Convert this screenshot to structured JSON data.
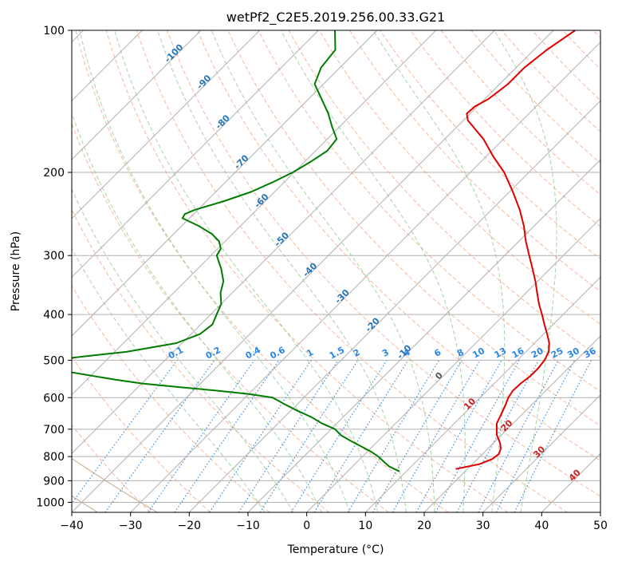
{
  "chart_data": {
    "type": "line",
    "title": "wetPf2_C2E5.2019.256.00.33.G21",
    "xlabel": "Temperature (°C)",
    "ylabel": "Pressure (hPa)",
    "xlim": [
      -40,
      50
    ],
    "ylim": [
      1050,
      100
    ],
    "yscale": "log",
    "skew": 35,
    "grid": true,
    "x_ticks": [
      -40,
      -30,
      -20,
      -10,
      0,
      10,
      20,
      30,
      40,
      50
    ],
    "y_ticks": [
      100,
      200,
      300,
      400,
      500,
      600,
      700,
      800,
      900,
      1000
    ],
    "series": [
      {
        "color": "#e00000",
        "p": [
          850,
          830,
          810,
          790,
          770,
          750,
          720,
          700,
          680,
          650,
          620,
          600,
          580,
          560,
          540,
          520,
          500,
          480,
          460,
          440,
          420,
          400,
          380,
          360,
          340,
          320,
          300,
          280,
          260,
          240,
          220,
          200,
          185,
          170,
          162,
          155,
          150,
          145,
          140,
          130,
          120,
          110,
          100
        ],
        "t": [
          18,
          21.2,
          22.5,
          22.8,
          22.2,
          21.2,
          19.2,
          18.2,
          17.2,
          16.4,
          15.5,
          14.8,
          14.4,
          14.5,
          14.9,
          14.9,
          14.6,
          13.9,
          12.5,
          10.6,
          8.5,
          6.4,
          4.1,
          1.9,
          -0.4,
          -3.0,
          -5.8,
          -8.8,
          -11.7,
          -15.2,
          -19.4,
          -24.2,
          -28.8,
          -33.4,
          -36.5,
          -39.3,
          -40.6,
          -40.4,
          -39.4,
          -38.6,
          -38.6,
          -37.8,
          -36.3
        ]
      },
      {
        "color": "#007c00",
        "p": [
          860,
          840,
          820,
          800,
          780,
          760,
          740,
          720,
          700,
          680,
          660,
          640,
          620,
          600,
          590,
          580,
          570,
          560,
          550,
          540,
          530,
          520,
          510,
          505,
          500,
          490,
          480,
          460,
          440,
          420,
          400,
          380,
          360,
          340,
          320,
          300,
          290,
          280,
          270,
          260,
          250,
          245,
          240,
          230,
          220,
          210,
          200,
          190,
          180,
          170,
          160,
          150,
          140,
          130,
          120,
          110,
          100
        ],
        "t": [
          8.8,
          6.3,
          4.5,
          2.7,
          0.5,
          -2.1,
          -4.8,
          -7.4,
          -9.3,
          -12.6,
          -15.4,
          -18.8,
          -22.1,
          -25.3,
          -29.8,
          -36.0,
          -43.0,
          -50.0,
          -55.0,
          -59.5,
          -64.0,
          -67.5,
          -70.0,
          -70.5,
          -69.5,
          -64.0,
          -58.0,
          -51.0,
          -48.5,
          -48.0,
          -49.0,
          -50.0,
          -52.0,
          -53.5,
          -56.0,
          -59.0,
          -59.5,
          -61.0,
          -63.5,
          -67.0,
          -71.2,
          -71.5,
          -70.5,
          -67.0,
          -64.0,
          -62.0,
          -60.2,
          -59.0,
          -58.0,
          -58.4,
          -61.3,
          -64.2,
          -67.7,
          -71.5,
          -73.2,
          -73.8,
          -77.2
        ]
      }
    ],
    "dry_adiabats_theta_C": [
      -30,
      -20,
      -10,
      0,
      10,
      20,
      30,
      40,
      50,
      60,
      70,
      80,
      90,
      100,
      110,
      120,
      130,
      140,
      150,
      160,
      170,
      180,
      190,
      200
    ],
    "moist_adiabats_C": [
      -10,
      -5,
      0,
      5,
      10,
      15,
      20,
      25,
      30,
      35
    ],
    "mixing_ratio_lines": [
      {
        "label": "0.1",
        "w": 0.1
      },
      {
        "label": "0.2",
        "w": 0.2
      },
      {
        "label": "0.4",
        "w": 0.4
      },
      {
        "label": "0.6",
        "w": 0.6
      },
      {
        "label": "1",
        "w": 1
      },
      {
        "label": "1.5",
        "w": 1.5
      },
      {
        "label": "2",
        "w": 2
      },
      {
        "label": "3",
        "w": 3
      },
      {
        "label": "4",
        "w": 4
      },
      {
        "label": "6",
        "w": 6
      },
      {
        "label": "8",
        "w": 8
      },
      {
        "label": "10",
        "w": 10
      },
      {
        "label": "13",
        "w": 13
      },
      {
        "label": "16",
        "w": 16
      },
      {
        "label": "20",
        "w": 20
      },
      {
        "label": "25",
        "w": 25
      },
      {
        "label": "30",
        "w": 30
      },
      {
        "label": "36",
        "w": 36
      }
    ],
    "isotherm_labels_upper": [
      {
        "label": "-100",
        "t": -100,
        "p": 113
      },
      {
        "label": "-90",
        "t": -90,
        "p": 130
      },
      {
        "label": "-80",
        "t": -80,
        "p": 158
      },
      {
        "label": "-70",
        "t": -70,
        "p": 192
      },
      {
        "label": "-60",
        "t": -60,
        "p": 232
      },
      {
        "label": "-50",
        "t": -50,
        "p": 280
      },
      {
        "label": "-40",
        "t": -40,
        "p": 325
      },
      {
        "label": "-30",
        "t": -30,
        "p": 370
      },
      {
        "label": "-20",
        "t": -20,
        "p": 425
      },
      {
        "label": "-10",
        "t": -10,
        "p": 485
      }
    ],
    "isotherm_labels_lower": [
      {
        "label": "0",
        "t": 0,
        "p": 545,
        "color": "#555555"
      },
      {
        "label": "10",
        "t": 10,
        "p": 625,
        "color": "#cc1f1f"
      },
      {
        "label": "20",
        "t": 20,
        "p": 695,
        "color": "#cc1f1f"
      },
      {
        "label": "30",
        "t": 30,
        "p": 790,
        "color": "#cc1f1f"
      },
      {
        "label": "40",
        "t": 40,
        "p": 885,
        "color": "#cc1f1f"
      }
    ],
    "colors": {
      "dry_adiabat": "#f4a582",
      "moist_adiabat": "#8fc98f",
      "mixing_ratio": "#3a8fe0",
      "mixing_label": "#2a86e8",
      "isotherm_label_upper": "#2676b8",
      "brown_curve": "#c8a98a",
      "grid": "#b0b0b0",
      "temperature": "#e00000",
      "dewpoint": "#007c00"
    }
  }
}
